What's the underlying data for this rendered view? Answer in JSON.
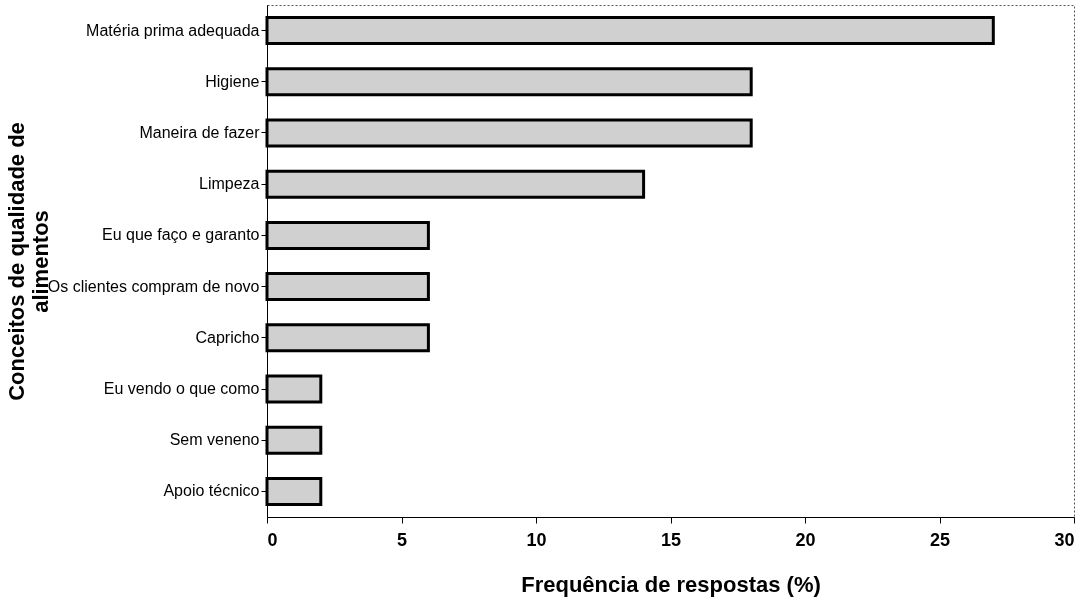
{
  "chart_data": {
    "type": "bar",
    "orientation": "horizontal",
    "xlabel": "Frequência de respostas (%)",
    "ylabel": "Conceitos de qualidade de\nalimentos",
    "categories": [
      "Matéria prima adequada",
      "Higiene",
      "Maneira de fazer",
      "Limpeza",
      "Eu que faço e garanto",
      "Os clientes compram de novo",
      "Capricho",
      "Eu vendo o que como",
      "Sem veneno",
      "Apoio técnico"
    ],
    "values": [
      27,
      18,
      18,
      14,
      6,
      6,
      6,
      2,
      2,
      2
    ],
    "color": "#d0d0d0",
    "xlim": [
      0,
      30
    ],
    "xticks": [
      0,
      5,
      10,
      15,
      20,
      25,
      30
    ],
    "grid": false
  }
}
